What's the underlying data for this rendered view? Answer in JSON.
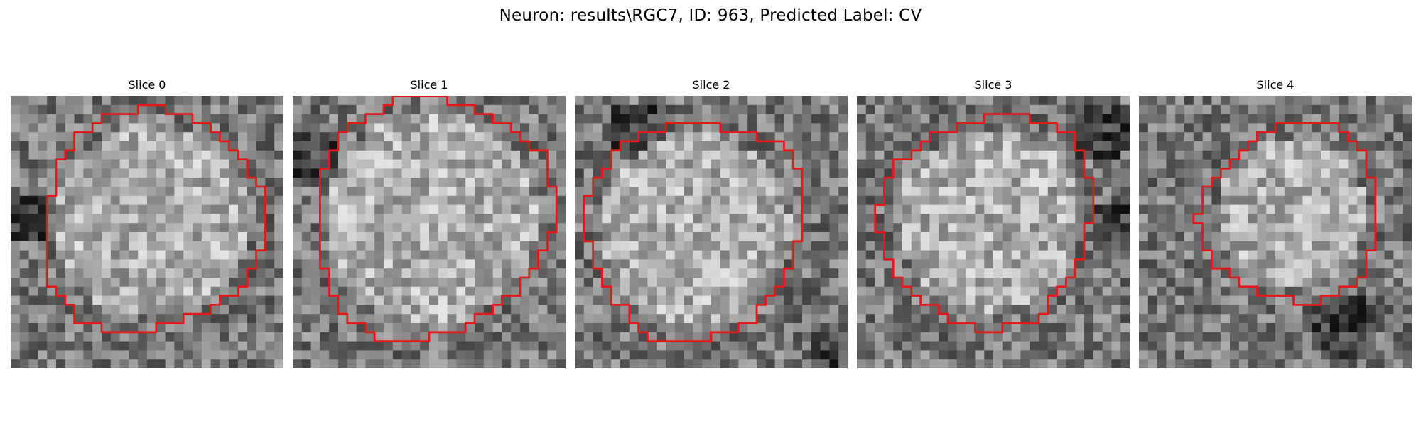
{
  "figure": {
    "title": "Neuron: results\\RGC7, ID: 963, Predicted Label: CV"
  },
  "panels": [
    {
      "title": "Slice 0"
    },
    {
      "title": "Slice 1"
    },
    {
      "title": "Slice 2"
    },
    {
      "title": "Slice 3"
    },
    {
      "title": "Slice 4"
    }
  ],
  "colors": {
    "contour": "#e31a1c",
    "background": "#ffffff"
  }
}
